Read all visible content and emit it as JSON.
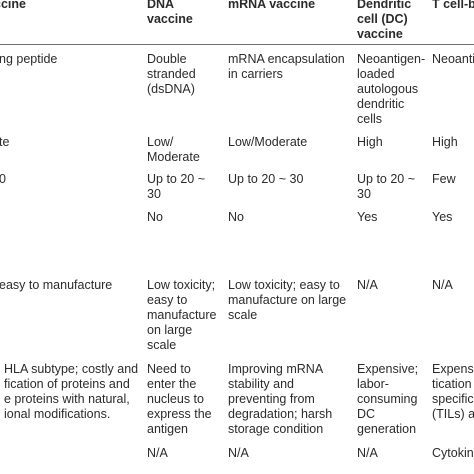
{
  "header": {
    "col0": [
      "ccine"
    ],
    "col1": [
      "DNA",
      "vaccine"
    ],
    "col2": [
      "mRNA vaccine"
    ],
    "col3": [
      "Dendritic",
      "cell (DC)",
      "vaccine"
    ],
    "col4": [
      "T cell-b"
    ]
  },
  "rows": [
    {
      "name": "row-1",
      "c0": [
        "ng peptide"
      ],
      "c1": [
        "Double",
        "stranded",
        "(dsDNA)"
      ],
      "c2": [
        "mRNA encapsulation",
        "in carriers"
      ],
      "c3": [
        "Neoantigen-",
        "loaded",
        "autologous",
        "dendritic",
        "cells"
      ],
      "c4": [
        "Neoanti"
      ]
    },
    {
      "name": "row-2",
      "c0": [
        "te"
      ],
      "c1": [
        "Low/",
        "Moderate"
      ],
      "c2": [
        "Low/Moderate"
      ],
      "c3": [
        "High"
      ],
      "c4": [
        "High"
      ]
    },
    {
      "name": "row-3",
      "c0": [
        "0"
      ],
      "c1": [
        "Up to 20 ~",
        "30"
      ],
      "c2": [
        "Up to 20 ~ 30"
      ],
      "c3": [
        "Up to 20 ~",
        "30"
      ],
      "c4": [
        "Few"
      ]
    },
    {
      "name": "row-4",
      "c0": [],
      "c1": [
        "No"
      ],
      "c2": [
        "No"
      ],
      "c3": [
        "Yes"
      ],
      "c4": [
        "Yes"
      ]
    },
    {
      "name": "row-5",
      "c0": [
        "easy to manufacture"
      ],
      "c1": [
        "Low toxicity;",
        "easy to",
        "manufacture",
        "on large",
        "scale"
      ],
      "c2": [
        "Low toxicity; easy to",
        "manufacture on large",
        "scale"
      ],
      "c3": [
        "N/A"
      ],
      "c4": [
        "N/A"
      ]
    },
    {
      "name": "row-6",
      "c0": [
        "HLA subtype; costly and",
        "fication of proteins and",
        "e proteins with natural,",
        "ional modifications."
      ],
      "c1": [
        "Need to",
        "enter the",
        "nucleus to",
        "express the",
        "antigen"
      ],
      "c2": [
        "Improving mRNA",
        "stability and",
        "preventing from",
        "degradation; harsh",
        "storage condition"
      ],
      "c3": [
        "Expensive;",
        "labor-",
        "consuming",
        "DC",
        "generation"
      ],
      "c4": [
        "Expensi",
        "tication an",
        "specific",
        "(TILs) and"
      ]
    },
    {
      "name": "row-7",
      "c0": [],
      "c1": [
        "N/A"
      ],
      "c2": [
        "N/A"
      ],
      "c3": [
        "N/A"
      ],
      "c4": [
        "Cytokin"
      ]
    }
  ]
}
